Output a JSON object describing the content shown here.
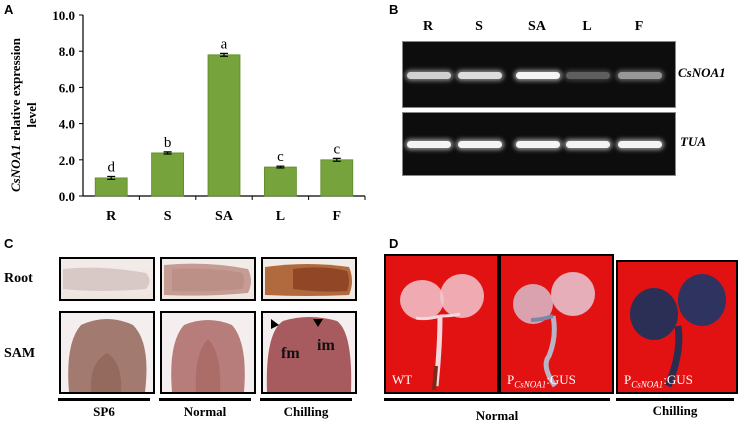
{
  "panels": {
    "a": "A",
    "b": "B",
    "c": "C",
    "d": "D"
  },
  "chart_data": {
    "type": "bar",
    "categories": [
      "R",
      "S",
      "SA",
      "L",
      "F"
    ],
    "values": [
      1.0,
      2.38,
      7.8,
      1.6,
      2.0
    ],
    "errors": [
      0.08,
      0.06,
      0.08,
      0.05,
      0.08
    ],
    "significance": [
      "d",
      "b",
      "a",
      "c",
      "c"
    ],
    "yticks": [
      "0.0",
      "2.0",
      "4.0",
      "6.0",
      "8.0",
      "10.0"
    ],
    "ylim": [
      0,
      10
    ],
    "ylabel_gene": "CsNOA1",
    "ylabel_rest": " relative expression",
    "ylabel_line2": "level",
    "bar_color": "#77a33c"
  },
  "gel": {
    "lanes": [
      "R",
      "S",
      "SA",
      "L",
      "F"
    ],
    "top_gene": "CsNOA1",
    "bottom_gene": "TUA",
    "top_intensity": [
      0.85,
      0.9,
      1.0,
      0.35,
      0.6
    ],
    "bottom_intensity": [
      1.0,
      1.0,
      1.0,
      1.0,
      1.0
    ]
  },
  "insitu": {
    "rows": [
      "Root",
      "SAM"
    ],
    "conditions": [
      "SP6",
      "Normal",
      "Chilling"
    ],
    "annotations": [
      "fm",
      "im"
    ]
  },
  "gus": {
    "photos": [
      {
        "main": "WT",
        "prefix": "",
        "sub": "",
        "suffix": ""
      },
      {
        "main": "",
        "prefix": "P",
        "sub": "CsNOA1",
        "suffix": ":GUS"
      },
      {
        "main": "",
        "prefix": "P",
        "sub": "CsNOA1",
        "suffix": ":GUS"
      }
    ],
    "groups": [
      "Normal",
      "Chilling"
    ],
    "background_color": "#e31212"
  }
}
